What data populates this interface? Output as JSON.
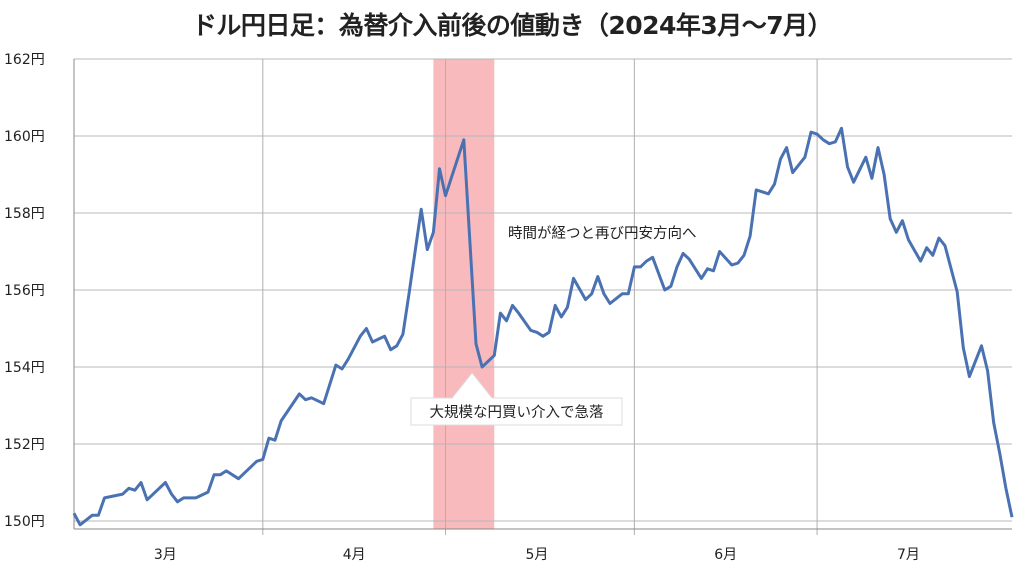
{
  "chart_data": {
    "type": "line",
    "title": "ドル円日足：為替介入前後の値動き（2024年3月〜7月）",
    "xlabel": "",
    "ylabel": "",
    "xlim": [
      "2024-03-01",
      "2024-08-02"
    ],
    "ylim": [
      150,
      162
    ],
    "y_ticks": [
      150,
      152,
      154,
      156,
      158,
      160,
      162
    ],
    "y_tick_labels": [
      "150円",
      "152円",
      "154円",
      "156円",
      "158円",
      "160円",
      "162円"
    ],
    "x_tick_labels": [
      "3月",
      "4月",
      "5月",
      "6月",
      "7月"
    ],
    "x_tick_dates": [
      "2024-03-16",
      "2024-04-16",
      "2024-05-16",
      "2024-06-16",
      "2024-07-16"
    ],
    "x_gridlines": [
      "2024-04-01",
      "2024-05-01",
      "2024-06-01",
      "2024-07-01"
    ],
    "grid": true,
    "line_color": "#4a72b2",
    "highlight_band": {
      "start": "2024-04-29",
      "end": "2024-05-09",
      "color": "#f7a3a8"
    },
    "annotations": [
      {
        "text": "大規模な円買い介入で急落",
        "date": "2024-05-07",
        "value": 154.0,
        "boxed": true
      },
      {
        "text": "時間が経つと再び円安方向へ",
        "date": "2024-05-11",
        "value": 157.4,
        "boxed": false
      }
    ],
    "series": [
      {
        "x": [
          "2024-03-01",
          "2024-03-02",
          "2024-03-04",
          "2024-03-05",
          "2024-03-06",
          "2024-03-09",
          "2024-03-10",
          "2024-03-11",
          "2024-03-12",
          "2024-03-13",
          "2024-03-16",
          "2024-03-17",
          "2024-03-18",
          "2024-03-19",
          "2024-03-21",
          "2024-03-23",
          "2024-03-24",
          "2024-03-25",
          "2024-03-26",
          "2024-03-28",
          "2024-03-29",
          "2024-03-31",
          "2024-04-01",
          "2024-04-02",
          "2024-04-03",
          "2024-04-04",
          "2024-04-07",
          "2024-04-08",
          "2024-04-09",
          "2024-04-11",
          "2024-04-12",
          "2024-04-13",
          "2024-04-14",
          "2024-04-15",
          "2024-04-17",
          "2024-04-18",
          "2024-04-19",
          "2024-04-21",
          "2024-04-22",
          "2024-04-23",
          "2024-04-24",
          "2024-04-25",
          "2024-04-27",
          "2024-04-28",
          "2024-04-29",
          "2024-04-30",
          "2024-05-01",
          "2024-05-04",
          "2024-05-06",
          "2024-05-07",
          "2024-05-09",
          "2024-05-10",
          "2024-05-11",
          "2024-05-12",
          "2024-05-13",
          "2024-05-15",
          "2024-05-16",
          "2024-05-17",
          "2024-05-18",
          "2024-05-19",
          "2024-05-20",
          "2024-05-21",
          "2024-05-22",
          "2024-05-24",
          "2024-05-25",
          "2024-05-26",
          "2024-05-27",
          "2024-05-28",
          "2024-05-30",
          "2024-05-31",
          "2024-06-01",
          "2024-06-02",
          "2024-06-03",
          "2024-06-04",
          "2024-06-06",
          "2024-06-07",
          "2024-06-08",
          "2024-06-09",
          "2024-06-10",
          "2024-06-12",
          "2024-06-13",
          "2024-06-14",
          "2024-06-15",
          "2024-06-17",
          "2024-06-18",
          "2024-06-19",
          "2024-06-20",
          "2024-06-21",
          "2024-06-23",
          "2024-06-24",
          "2024-06-25",
          "2024-06-26",
          "2024-06-27",
          "2024-06-29",
          "2024-06-30",
          "2024-07-01",
          "2024-07-02",
          "2024-07-03",
          "2024-07-04",
          "2024-07-05",
          "2024-07-06",
          "2024-07-07",
          "2024-07-09",
          "2024-07-10",
          "2024-07-11",
          "2024-07-12",
          "2024-07-13",
          "2024-07-14",
          "2024-07-15",
          "2024-07-16",
          "2024-07-18",
          "2024-07-19",
          "2024-07-20",
          "2024-07-21",
          "2024-07-22",
          "2024-07-24",
          "2024-07-25",
          "2024-07-26",
          "2024-07-28",
          "2024-07-29",
          "2024-07-30",
          "2024-07-31",
          "2024-08-01",
          "2024-08-02"
        ],
        "values": [
          150.2,
          149.9,
          150.15,
          150.15,
          150.6,
          150.7,
          150.85,
          150.8,
          151.0,
          150.55,
          151.0,
          150.7,
          150.5,
          150.6,
          150.6,
          150.75,
          151.2,
          151.2,
          151.3,
          151.1,
          151.25,
          151.55,
          151.6,
          152.15,
          152.1,
          152.6,
          153.3,
          153.15,
          153.2,
          153.05,
          153.55,
          154.05,
          153.95,
          154.2,
          154.8,
          155.0,
          154.65,
          154.8,
          154.45,
          154.55,
          154.85,
          155.9,
          158.1,
          157.05,
          157.5,
          159.15,
          158.45,
          159.9,
          154.6,
          154.0,
          154.3,
          155.4,
          155.2,
          155.6,
          155.4,
          154.95,
          154.9,
          154.8,
          154.9,
          155.6,
          155.3,
          155.55,
          156.3,
          155.75,
          155.9,
          156.35,
          155.9,
          155.65,
          155.9,
          155.9,
          156.6,
          156.6,
          156.75,
          156.85,
          156.0,
          156.1,
          156.6,
          156.95,
          156.8,
          156.3,
          156.55,
          156.5,
          157.0,
          156.65,
          156.7,
          156.9,
          157.4,
          158.6,
          158.5,
          158.75,
          159.4,
          159.7,
          159.05,
          159.45,
          160.1,
          160.05,
          159.9,
          159.8,
          159.85,
          160.2,
          159.2,
          158.8,
          159.45,
          158.9,
          159.7,
          159.0,
          157.85,
          157.5,
          157.8,
          157.3,
          156.75,
          157.1,
          156.9,
          157.35,
          157.15,
          155.95,
          154.5,
          153.75,
          154.55,
          153.9,
          152.55,
          151.75,
          150.85,
          150.1
        ]
      }
    ]
  }
}
